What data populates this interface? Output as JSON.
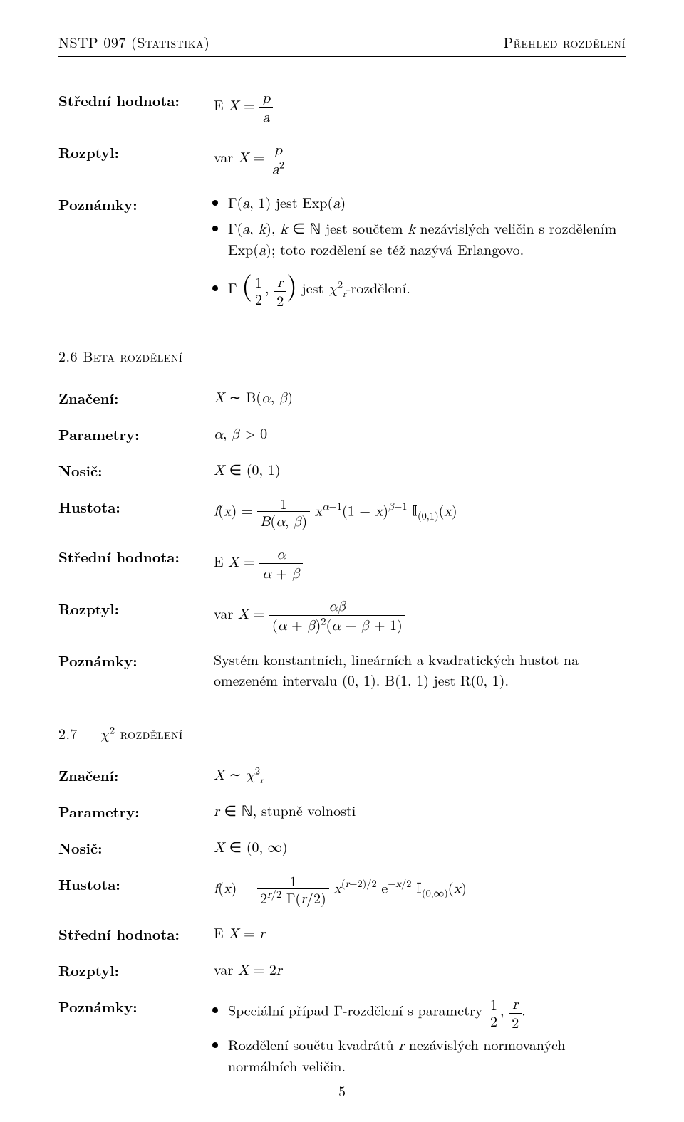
{
  "header": {
    "left": "NSTP 097 (Statistika)",
    "right": "Přehled rozdělení"
  },
  "gamma": {
    "label_mean": "Střední hodnota:",
    "mean_html": "E <span class='math'>X</span> = <span class='frac'><span class='num'><span class='math'>p</span></span><span class='den'><span class='math'>a</span></span></span>",
    "label_var": "Rozptyl:",
    "var_html": "var <span class='math'>X</span> = <span class='frac'><span class='num'><span class='math'>p</span></span><span class='den'><span class='math'>a</span><sup>2</sup></span></span>",
    "label_notes": "Poznámky:",
    "note1_html": "Γ(<span class='math'>a</span>, 1) jest Exp(<span class='math'>a</span>)",
    "note2_html": "Γ(<span class='math'>a</span>, <span class='math'>k</span>), <span class='math'>k</span> ∈ <span class='bb'>ℕ</span> jest součtem <span class='math'>k</span> nezávislých veličin s rozdělením Exp(<span class='math'>a</span>); toto rozdělení se též nazývá Erlangovo.",
    "note3_html": "Γ <span class='paren-big'>(</span><span class='frac'><span class='num'>1</span><span class='den'>2</span></span>, <span class='frac'><span class='num'><span class='math'>r</span></span><span class='den'>2</span></span><span class='paren-big'>)</span> jest <span class='math'>χ</span><sup>2</sup><sub class='sub2'><span class='math'>r</span></sub>-rozdělení."
  },
  "beta": {
    "section": "2.6   Beta rozdělení",
    "label_not": "Značení:",
    "notation_html": "<span class='math'>X</span> ∼ B(<span class='math'>α</span>, <span class='math'>β</span>)",
    "label_param": "Parametry:",
    "param_html": "<span class='math'>α</span>, <span class='math'>β</span> &gt; 0",
    "label_supp": "Nosič:",
    "support_html": "<span class='math'>X</span> ∈ (0, 1)",
    "label_dens": "Hustota:",
    "density_html": "<span class='math'>f</span>(<span class='math'>x</span>) = <span class='frac'><span class='num'>1</span><span class='den'><span class='math'>B</span>(<span class='math'>α</span>, <span class='math'>β</span>)</span></span> <span class='math'>x</span><sup><span class='math'>α</span>−1</sup>(1 − <span class='math'>x</span>)<sup><span class='math'>β</span>−1</sup> <span class='bb'>𝕀</span><sub>(0,1)</sub>(<span class='math'>x</span>)",
    "label_mean": "Střední hodnota:",
    "mean_html": "E <span class='math'>X</span> = <span class='frac'><span class='num'><span class='math'>α</span></span><span class='den'><span class='math'>α</span> + <span class='math'>β</span></span></span>",
    "label_var": "Rozptyl:",
    "var_html": "var <span class='math'>X</span> = <span class='frac'><span class='num'><span class='math'>αβ</span></span><span class='den'>(<span class='math'>α</span> + <span class='math'>β</span>)<sup>2</sup>(<span class='math'>α</span> + <span class='math'>β</span> + 1)</span></span>",
    "label_notes": "Poznámky:",
    "notes_html": "Systém konstantních, lineárních a kvadratických hustot na omezeném intervalu (0, 1). B(1, 1) jest R(0, 1)."
  },
  "chi2": {
    "section": "2.7   χ² rozdělení",
    "section_html": "2.7&nbsp;&nbsp;&nbsp;<span class='math'>χ</span><sup>2</sup> <span style='font-variant:small-caps'>rozdělení</span>",
    "label_not": "Značení:",
    "notation_html": "<span class='math'>X</span> ∼ <span class='math'>χ</span><sup>2</sup><sub class='sub2'><span class='math'>r</span></sub>",
    "label_param": "Parametry:",
    "param_html": "<span class='math'>r</span> ∈ <span class='bb'>ℕ</span>, stupně volnosti",
    "label_supp": "Nosič:",
    "support_html": "<span class='math'>X</span> ∈ (0, ∞)",
    "label_dens": "Hustota:",
    "density_html": "<span class='math'>f</span>(<span class='math'>x</span>) = <span class='frac'><span class='num'>1</span><span class='den'>2<sup><span class='math'>r</span>/2</sup> Γ(<span class='math'>r</span>/2)</span></span> <span class='math'>x</span><sup>(<span class='math'>r</span>−2)/2</sup> e<sup>−<span class='math'>x</span>/2</sup> <span class='bb'>𝕀</span><sub>(0,∞)</sub>(<span class='math'>x</span>)",
    "label_mean": "Střední hodnota:",
    "mean_html": "E <span class='math'>X</span> = <span class='math'>r</span>",
    "label_var": "Rozptyl:",
    "var_html": "var <span class='math'>X</span> = 2<span class='math'>r</span>",
    "label_notes": "Poznámky:",
    "note1_html": "Speciální případ Γ-rozdělení s parametry <span class='frac'><span class='num'>1</span><span class='den'>2</span></span>, <span class='frac'><span class='num'><span class='math'>r</span></span><span class='den'>2</span></span>.",
    "note2_html": "Rozdělení součtu kvadrátů <span class='math'>r</span> nezávislých normovaných normálních veličin."
  },
  "page_number": "5"
}
